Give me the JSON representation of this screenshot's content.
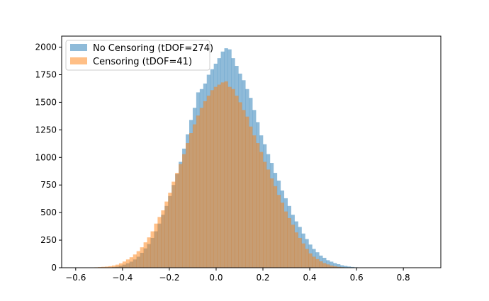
{
  "chart_data": {
    "type": "histogram",
    "title": "",
    "xlabel": "",
    "ylabel": "",
    "xlim": [
      -0.66,
      0.96
    ],
    "ylim": [
      0,
      2100
    ],
    "bin_start": -0.58,
    "bin_width": 0.015,
    "x_ticks": [
      "-0.6",
      "-0.4",
      "-0.2",
      "0.0",
      "0.2",
      "0.4",
      "0.6",
      "0.8"
    ],
    "x_tick_values": [
      -0.6,
      -0.4,
      -0.2,
      0.0,
      0.2,
      0.4,
      0.6,
      0.8
    ],
    "y_ticks": [
      "0",
      "250",
      "500",
      "750",
      "1000",
      "1250",
      "1500",
      "1750",
      "2000"
    ],
    "y_tick_values": [
      0,
      250,
      500,
      750,
      1000,
      1250,
      1500,
      1750,
      2000
    ],
    "grid": false,
    "legend_position": "top-left",
    "series": [
      {
        "name": "No Censoring (tDOF=274)",
        "color": "#1f77b4",
        "values": [
          0,
          0,
          0,
          0,
          0,
          0,
          0,
          0,
          2,
          5,
          10,
          18,
          28,
          40,
          55,
          75,
          100,
          135,
          175,
          215,
          270,
          330,
          400,
          480,
          560,
          650,
          750,
          850,
          960,
          1080,
          1210,
          1340,
          1450,
          1590,
          1620,
          1670,
          1750,
          1800,
          1850,
          1900,
          1960,
          1990,
          1980,
          1900,
          1830,
          1760,
          1700,
          1620,
          1540,
          1430,
          1320,
          1200,
          1120,
          1030,
          950,
          860,
          790,
          700,
          630,
          560,
          480,
          420,
          370,
          310,
          260,
          210,
          170,
          140,
          110,
          90,
          68,
          55,
          42,
          32,
          22,
          16,
          11,
          7,
          4,
          2,
          1,
          0,
          0,
          0,
          0,
          0
        ]
      },
      {
        "name": "Censoring (tDOF=41)",
        "color": "#ff7f0e",
        "values": [
          0,
          1,
          2,
          3,
          4,
          6,
          8,
          10,
          14,
          20,
          28,
          40,
          56,
          75,
          95,
          120,
          150,
          185,
          230,
          275,
          330,
          400,
          460,
          520,
          600,
          680,
          780,
          860,
          940,
          1030,
          1130,
          1220,
          1300,
          1380,
          1450,
          1510,
          1560,
          1610,
          1640,
          1660,
          1680,
          1690,
          1640,
          1620,
          1560,
          1500,
          1430,
          1370,
          1280,
          1200,
          1130,
          1050,
          960,
          890,
          810,
          740,
          660,
          590,
          510,
          450,
          390,
          320,
          270,
          220,
          170,
          130,
          100,
          78,
          58,
          42,
          30,
          20,
          13,
          8,
          5,
          3,
          2,
          1,
          0,
          0,
          0,
          0,
          0,
          0,
          0,
          0
        ]
      }
    ]
  }
}
